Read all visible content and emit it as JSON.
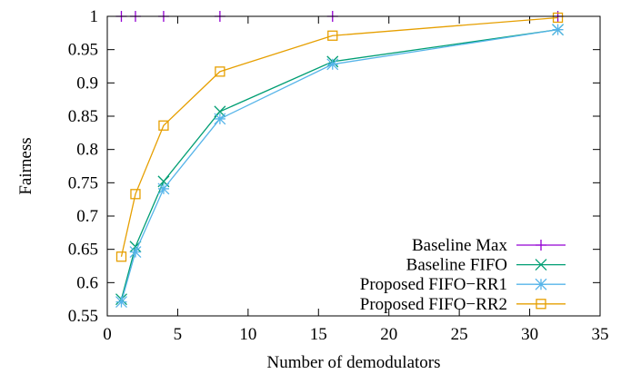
{
  "chart_data": {
    "type": "line",
    "title": "",
    "xlabel": "Number of demodulators",
    "ylabel": "Fairness",
    "xlim": [
      0,
      35
    ],
    "ylim": [
      0.55,
      1
    ],
    "xticks": [
      0,
      5,
      10,
      15,
      20,
      25,
      30,
      35
    ],
    "yticks": [
      0.55,
      0.6,
      0.65,
      0.7,
      0.75,
      0.8,
      0.85,
      0.9,
      0.95,
      1
    ],
    "xtick_labels": [
      "0",
      "5",
      "10",
      "15",
      "20",
      "25",
      "30",
      "35"
    ],
    "ytick_labels": [
      "0.55",
      "0.6",
      "0.65",
      "0.7",
      "0.75",
      "0.8",
      "0.85",
      "0.9",
      "0.95",
      "1"
    ],
    "grid": false,
    "legend_position": "bottom-right",
    "series": [
      {
        "name": "Baseline Max",
        "color": "#9400d3",
        "marker": "plus",
        "show_line": false,
        "x": [
          1,
          2,
          4,
          8,
          16,
          32
        ],
        "y": [
          1,
          1,
          1,
          1,
          1,
          1
        ]
      },
      {
        "name": "Baseline FIFO",
        "color": "#009e73",
        "marker": "x",
        "show_line": true,
        "x": [
          1,
          2,
          4,
          8,
          16,
          32
        ],
        "y": [
          0.575,
          0.654,
          0.752,
          0.857,
          0.932,
          0.98
        ]
      },
      {
        "name": "Proposed FIFO−RR1",
        "color": "#56b4e9",
        "marker": "star",
        "show_line": true,
        "x": [
          1,
          2,
          4,
          8,
          16,
          32
        ],
        "y": [
          0.571,
          0.646,
          0.741,
          0.846,
          0.928,
          0.98
        ]
      },
      {
        "name": "Proposed FIFO−RR2",
        "color": "#e69f00",
        "marker": "square",
        "show_line": true,
        "x": [
          1,
          2,
          4,
          8,
          16,
          32
        ],
        "y": [
          0.639,
          0.733,
          0.836,
          0.917,
          0.971,
          0.998
        ]
      }
    ]
  }
}
